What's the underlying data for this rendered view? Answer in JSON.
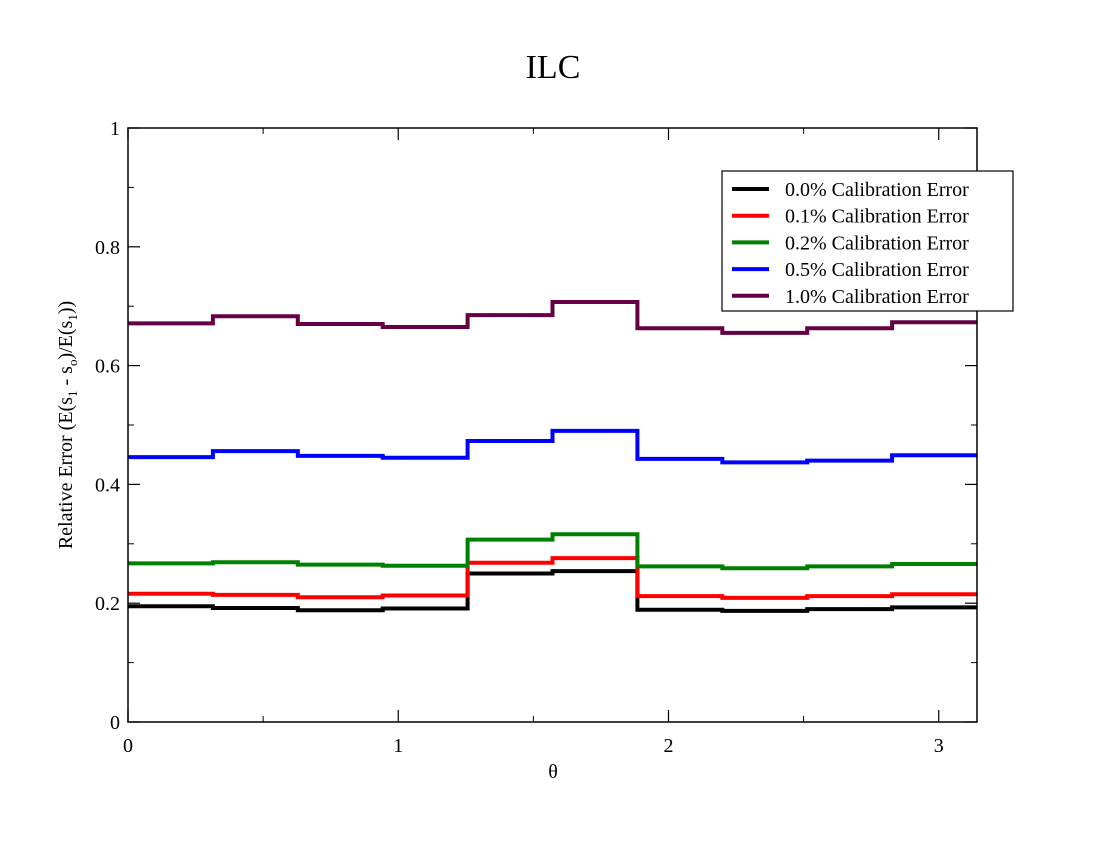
{
  "chart_data": {
    "type": "line",
    "step": true,
    "title": "ILC",
    "xlabel": "θ",
    "ylabel_parts": [
      "Relative Error (E(s",
      "1",
      " - s",
      "o",
      ")/E(s",
      "1",
      "))"
    ],
    "xlim": [
      0,
      3.1416
    ],
    "ylim": [
      0,
      1
    ],
    "x_ticks": [
      "0",
      "1",
      "2",
      "3"
    ],
    "y_ticks": [
      "0",
      "0.2",
      "0.4",
      "0.6",
      "0.8",
      "1"
    ],
    "grid": false,
    "legend_position": "top-right",
    "bin_edges": [
      0,
      0.3142,
      0.6283,
      0.9425,
      1.2566,
      1.5708,
      1.885,
      2.1991,
      2.5133,
      2.8274,
      3.1416
    ],
    "series": [
      {
        "name": "0.0% Calibration Error",
        "color": "#000000",
        "values": [
          0.195,
          0.192,
          0.188,
          0.191,
          0.25,
          0.254,
          0.189,
          0.187,
          0.19,
          0.193
        ]
      },
      {
        "name": "0.1% Calibration Error",
        "color": "#ff0000",
        "values": [
          0.216,
          0.214,
          0.21,
          0.213,
          0.268,
          0.276,
          0.212,
          0.209,
          0.212,
          0.215
        ]
      },
      {
        "name": "0.2% Calibration Error",
        "color": "#008000",
        "values": [
          0.267,
          0.269,
          0.265,
          0.263,
          0.307,
          0.316,
          0.262,
          0.259,
          0.262,
          0.266
        ]
      },
      {
        "name": "0.5% Calibration Error",
        "color": "#0000ff",
        "values": [
          0.446,
          0.456,
          0.448,
          0.445,
          0.473,
          0.49,
          0.443,
          0.437,
          0.44,
          0.449
        ]
      },
      {
        "name": "1.0% Calibration Error",
        "color": "#660044",
        "values": [
          0.671,
          0.683,
          0.67,
          0.665,
          0.685,
          0.707,
          0.663,
          0.655,
          0.663,
          0.673
        ]
      }
    ]
  }
}
